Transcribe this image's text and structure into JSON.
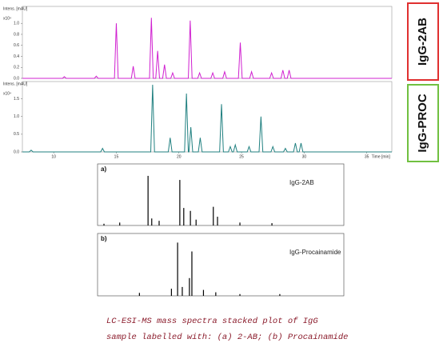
{
  "chart_data": [
    {
      "type": "line",
      "label": "IgG-2AB",
      "label_color": "#e03030",
      "color": "#d020d0",
      "ylabel": "Intens. [mAU]",
      "yscale_label": "x10⁴",
      "x": [
        7.5,
        10.7,
        10.85,
        11.0,
        13.25,
        13.4,
        13.55,
        14.85,
        15.0,
        15.15,
        16.2,
        16.35,
        16.5,
        17.65,
        17.8,
        17.95,
        18.15,
        18.3,
        18.45,
        18.7,
        18.85,
        19.0,
        19.35,
        19.5,
        19.65,
        20.75,
        20.9,
        21.05,
        21.5,
        21.65,
        21.8,
        22.55,
        22.7,
        22.85,
        23.5,
        23.65,
        23.8,
        24.75,
        24.9,
        25.05,
        25.65,
        25.8,
        25.95,
        27.25,
        27.4,
        27.55,
        28.15,
        28.3,
        28.45,
        28.65,
        28.8,
        28.95,
        37
      ],
      "values": [
        0,
        0,
        0.03,
        0,
        0,
        0.04,
        0,
        0,
        1.0,
        0,
        0,
        0.22,
        0,
        0,
        1.1,
        0,
        0,
        0.5,
        0,
        0,
        0.25,
        0,
        0,
        0.1,
        0,
        0,
        1.05,
        0,
        0,
        0.1,
        0,
        0,
        0.1,
        0,
        0,
        0.12,
        0,
        0,
        0.65,
        0,
        0,
        0.12,
        0,
        0,
        0.1,
        0,
        0,
        0.15,
        0,
        0,
        0.15,
        0,
        0
      ],
      "xlim": [
        7.5,
        37
      ],
      "ylim": [
        0,
        1.25
      ],
      "yticks": [
        {
          "value": 0,
          "label": "0.0"
        },
        0.2,
        0.4,
        0.6,
        0.8,
        {
          "value": 1,
          "label": "1.0"
        }
      ]
    },
    {
      "type": "line",
      "label": "IgG-PROC",
      "label_color": "#70c040",
      "color": "#208080",
      "ylabel": "Intens. [mAU]",
      "yscale_label": "x10⁴",
      "xlabel": "Time [min]",
      "x": [
        7.5,
        8.05,
        8.2,
        8.35,
        13.75,
        13.9,
        14.05,
        17.75,
        17.9,
        18.05,
        19.15,
        19.3,
        19.45,
        20.45,
        20.6,
        20.75,
        20.8,
        20.95,
        21.1,
        21.55,
        21.7,
        21.85,
        23.25,
        23.4,
        23.55,
        23.95,
        24.1,
        24.25,
        24.35,
        24.5,
        24.65,
        25.45,
        25.6,
        25.75,
        26.4,
        26.55,
        26.7,
        27.35,
        27.5,
        27.65,
        28.35,
        28.5,
        28.65,
        29.15,
        29.3,
        29.45,
        29.6,
        29.75,
        29.9,
        37
      ],
      "values": [
        0,
        0,
        0.05,
        0,
        0,
        0.1,
        0,
        0,
        1.9,
        0,
        0,
        0.4,
        0,
        0,
        1.65,
        0,
        0,
        0.7,
        0,
        0,
        0.4,
        0,
        0,
        1.35,
        0,
        0,
        0.15,
        0,
        0,
        0.2,
        0,
        0,
        0.15,
        0,
        0,
        1.0,
        0,
        0,
        0.15,
        0,
        0,
        0.1,
        0,
        0,
        0.25,
        0,
        0,
        0.25,
        0,
        0
      ],
      "xlim": [
        7.5,
        37
      ],
      "ylim": [
        0,
        1.9
      ],
      "yticks": [
        {
          "value": 0,
          "label": "0.0"
        },
        0.5,
        {
          "value": 1,
          "label": "1.0"
        },
        1.5
      ],
      "xticks": [
        10,
        15,
        20,
        25,
        30,
        35
      ]
    },
    {
      "type": "stick",
      "label": "a)",
      "title": "IgG-2AB",
      "color": "#000000",
      "x": [
        2.6,
        9,
        20.5,
        22,
        25,
        33.4,
        35,
        37.7,
        40,
        47,
        48.7,
        57.8,
        70.8
      ],
      "values": [
        0.03,
        0.05,
        0.85,
        0.12,
        0.08,
        0.78,
        0.3,
        0.25,
        0.1,
        0.32,
        0.15,
        0.05,
        0.04
      ],
      "xlim": [
        0,
        100
      ],
      "ylim": [
        0,
        1
      ]
    },
    {
      "type": "stick",
      "label": "b)",
      "title": "IgG-Procainamide",
      "color": "#000000",
      "x": [
        17,
        30,
        32.5,
        34.4,
        37.3,
        38.3,
        43,
        48,
        57.8,
        74
      ],
      "values": [
        0.05,
        0.12,
        0.9,
        0.15,
        0.3,
        0.75,
        0.1,
        0.06,
        0.03,
        0.03
      ],
      "xlim": [
        0,
        100
      ],
      "ylim": [
        0,
        1
      ]
    }
  ],
  "caption": [
    "LC-ESI-MS mass spectra stacked plot of IgG",
    "sample labelled with: (a) 2-AB; (b) Procainamide"
  ]
}
